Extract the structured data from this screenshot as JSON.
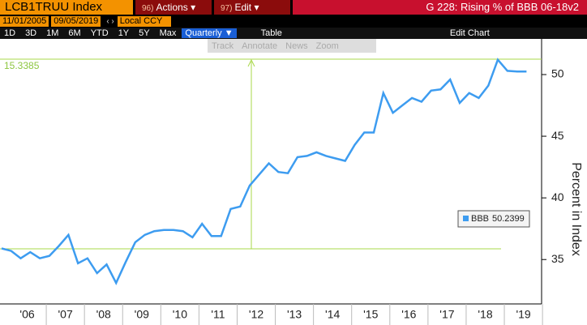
{
  "header": {
    "ticker": "LCB1TRUU Index",
    "menus": [
      {
        "hotkey": "96)",
        "label": "Actions"
      },
      {
        "hotkey": "97)",
        "label": "Edit"
      }
    ],
    "title": "G 228: Rising % of BBB 06-18v2"
  },
  "range": {
    "start": "11/01/2005",
    "end": "09/05/2019",
    "currency": "Local CCY"
  },
  "periods": [
    "1D",
    "3D",
    "1M",
    "6M",
    "YTD",
    "1Y",
    "5Y",
    "Max"
  ],
  "frequency": "Quarterly",
  "view": "Table",
  "edit": "Edit Chart",
  "tools": [
    "Track",
    "Annotate",
    "News",
    "Zoom"
  ],
  "chart_data": {
    "type": "line",
    "y_label": "Percent in Index",
    "annotation": 15.3385,
    "x": [
      2005.83,
      2006.08,
      2006.33,
      2006.58,
      2006.83,
      2007.08,
      2007.33,
      2007.58,
      2007.83,
      2008.08,
      2008.33,
      2008.58,
      2008.83,
      2009.08,
      2009.33,
      2009.58,
      2009.83,
      2010.08,
      2010.33,
      2010.58,
      2010.83,
      2011.08,
      2011.33,
      2011.58,
      2011.83,
      2012.08,
      2012.33,
      2012.58,
      2012.83,
      2013.08,
      2013.33,
      2013.58,
      2013.83,
      2014.08,
      2014.33,
      2014.58,
      2014.83,
      2015.08,
      2015.33,
      2015.58,
      2015.83,
      2016.08,
      2016.33,
      2016.58,
      2016.83,
      2017.08,
      2017.33,
      2017.58,
      2017.83,
      2018.08,
      2018.33,
      2018.58,
      2018.83,
      2019.08,
      2019.33,
      2019.58
    ],
    "series": [
      {
        "name": "BBB",
        "color": "#3d9cf0",
        "last_value": 50.2399,
        "values": [
          35.9,
          35.7,
          35.1,
          35.6,
          35.1,
          35.3,
          36.1,
          37.0,
          34.7,
          35.1,
          33.9,
          34.6,
          33.1,
          34.8,
          36.4,
          37.0,
          37.3,
          37.4,
          37.4,
          37.3,
          36.8,
          37.9,
          36.9,
          36.9,
          39.1,
          39.3,
          41.0,
          41.9,
          42.8,
          42.1,
          42.0,
          43.3,
          43.4,
          43.7,
          43.4,
          43.2,
          43.0,
          44.3,
          45.3,
          45.3,
          48.5,
          46.9,
          47.5,
          48.1,
          47.8,
          48.7,
          48.8,
          49.6,
          47.7,
          48.5,
          48.1,
          49.1,
          51.2,
          50.3,
          50.25,
          50.2399
        ]
      }
    ],
    "xlim": [
      2005.83,
      2019.7
    ],
    "xticks": [
      {
        "value": 2006.5,
        "label": "'06"
      },
      {
        "value": 2007.5,
        "label": "'07"
      },
      {
        "value": 2008.5,
        "label": "'08"
      },
      {
        "value": 2009.5,
        "label": "'09"
      },
      {
        "value": 2010.5,
        "label": "'10"
      },
      {
        "value": 2011.5,
        "label": "'11"
      },
      {
        "value": 2012.5,
        "label": "'12"
      },
      {
        "value": 2013.5,
        "label": "'13"
      },
      {
        "value": 2014.5,
        "label": "'14"
      },
      {
        "value": 2015.5,
        "label": "'15"
      },
      {
        "value": 2016.5,
        "label": "'16"
      },
      {
        "value": 2017.5,
        "label": "'17"
      },
      {
        "value": 2018.5,
        "label": "'18"
      },
      {
        "value": 2019.5,
        "label": "'19"
      }
    ],
    "ylim": [
      31.4,
      52.3
    ],
    "yticks": [
      35,
      40,
      45,
      50
    ],
    "grid": false,
    "legend": "right"
  }
}
